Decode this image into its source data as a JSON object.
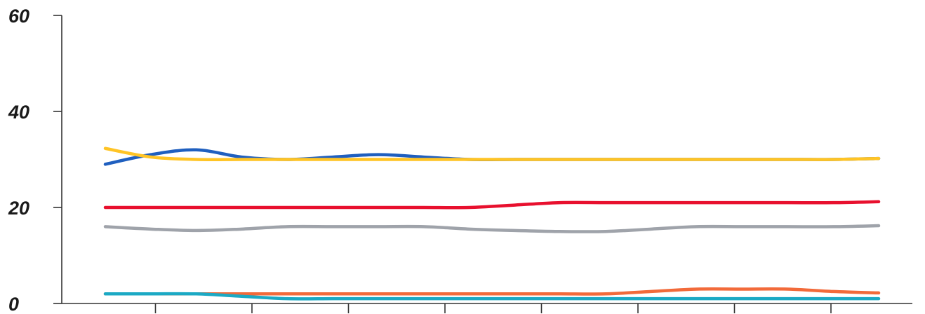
{
  "chart_data": {
    "type": "line",
    "title": "",
    "xlabel": "",
    "ylabel": "",
    "ylim": [
      0,
      60
    ],
    "y_ticks": [
      0,
      20,
      40,
      60
    ],
    "y_tick_labels": [
      "0",
      "20",
      "40",
      "60"
    ],
    "x_tick_count": 9,
    "grid": false,
    "legend": "none",
    "x": [
      1,
      2,
      3,
      4,
      5,
      6,
      7,
      8,
      9,
      10,
      11,
      12,
      13,
      14,
      15,
      16,
      17,
      18
    ],
    "series": [
      {
        "color": "#1f5fbf",
        "values": [
          29,
          31,
          32,
          30.5,
          30,
          30.5,
          31,
          30.5,
          30,
          30,
          30,
          30,
          30,
          30,
          30,
          30,
          30,
          30.2
        ]
      },
      {
        "color": "#ffc425",
        "values": [
          32.3,
          30.5,
          30,
          30,
          30,
          30,
          30,
          30,
          30,
          30,
          30,
          30,
          30,
          30,
          30,
          30,
          30,
          30.2
        ]
      },
      {
        "color": "#e8102e",
        "values": [
          20,
          20,
          20,
          20,
          20,
          20,
          20,
          20,
          20,
          20.5,
          21,
          21,
          21,
          21,
          21,
          21,
          21,
          21.2
        ]
      },
      {
        "color": "#9fa3aa",
        "values": [
          16,
          15.5,
          15.2,
          15.5,
          16,
          16,
          16,
          16,
          15.5,
          15.2,
          15,
          15,
          15.5,
          16,
          16,
          16,
          16,
          16.2
        ]
      },
      {
        "color": "#f26a3a",
        "values": [
          2,
          2,
          2,
          2,
          2,
          2,
          2,
          2,
          2,
          2,
          2,
          2,
          2.5,
          3,
          3,
          3,
          2.5,
          2.2
        ]
      },
      {
        "color": "#1ba9c4",
        "values": [
          2,
          2,
          2,
          1.5,
          1,
          1,
          1,
          1,
          1,
          1,
          1,
          1,
          1,
          1,
          1,
          1,
          1,
          1
        ]
      }
    ]
  }
}
